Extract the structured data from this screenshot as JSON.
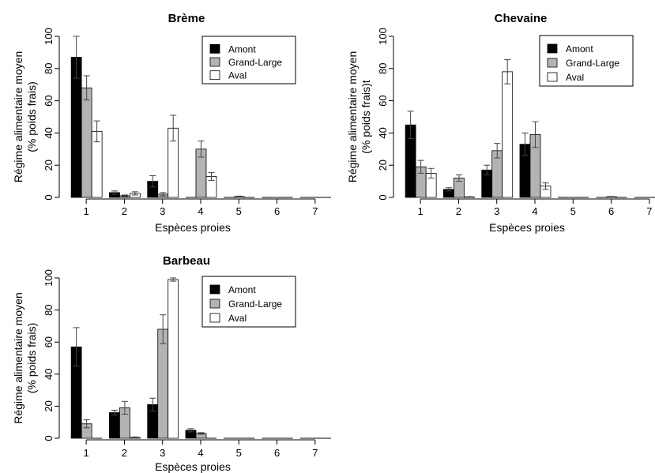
{
  "chart_data": [
    {
      "type": "bar",
      "title": "Brème",
      "xlabel": "Espèces proies",
      "ylabel": [
        "Régime alimentaire moyen",
        "(% poids frais)"
      ],
      "categories": [
        "1",
        "2",
        "3",
        "4",
        "5",
        "6",
        "7"
      ],
      "ylim": [
        0,
        100
      ],
      "yticks": [
        "0",
        "20",
        "40",
        "60",
        "80",
        "100"
      ],
      "legend_position": "top-right",
      "series": [
        {
          "name": "Amont",
          "color": "#000000",
          "values": [
            87,
            3,
            10,
            0,
            0,
            0,
            0
          ],
          "errors": [
            13,
            1,
            3.5,
            0,
            0,
            0,
            0
          ]
        },
        {
          "name": "Grand-Large",
          "color": "#b3b3b3",
          "values": [
            68,
            1,
            2,
            30,
            0.5,
            0,
            0
          ],
          "errors": [
            7.5,
            0.5,
            1,
            5,
            0.3,
            0,
            0
          ]
        },
        {
          "name": "Aval",
          "color": "#ffffff",
          "values": [
            41,
            2.5,
            43,
            13,
            0,
            0,
            0
          ],
          "errors": [
            6.5,
            1,
            8,
            2.5,
            0,
            0,
            0
          ]
        }
      ]
    },
    {
      "type": "bar",
      "title": "Chevaine",
      "xlabel": "Espèces proies",
      "ylabel": [
        "Régime alimentaire moyen",
        "(% poids frais)t"
      ],
      "categories": [
        "1",
        "2",
        "3",
        "4",
        "5",
        "6",
        "7"
      ],
      "ylim": [
        0,
        100
      ],
      "yticks": [
        "0",
        "20",
        "40",
        "60",
        "80",
        "100"
      ],
      "legend_position": "top-right",
      "series": [
        {
          "name": "Amont",
          "color": "#000000",
          "values": [
            45,
            5,
            17,
            33,
            0,
            0,
            0
          ],
          "errors": [
            8.5,
            1,
            3,
            7,
            0,
            0,
            0
          ]
        },
        {
          "name": "Grand-Large",
          "color": "#b3b3b3",
          "values": [
            19,
            12,
            29,
            39,
            0,
            0.4,
            0
          ],
          "errors": [
            4,
            2,
            4.5,
            8,
            0,
            0.2,
            0
          ]
        },
        {
          "name": "Aval",
          "color": "#ffffff",
          "values": [
            15,
            0.3,
            78,
            7,
            0,
            0,
            0
          ],
          "errors": [
            3,
            0.2,
            7.5,
            2,
            0,
            0,
            0
          ]
        }
      ]
    },
    {
      "type": "bar",
      "title": "Barbeau",
      "xlabel": "Espèces proies",
      "ylabel": [
        "Régime alimentaire moyen",
        "(% poids frais)"
      ],
      "categories": [
        "1",
        "2",
        "3",
        "4",
        "5",
        "6",
        "7"
      ],
      "ylim": [
        0,
        100
      ],
      "yticks": [
        "0",
        "20",
        "40",
        "60",
        "80",
        "100"
      ],
      "legend_position": "top-right",
      "series": [
        {
          "name": "Amont",
          "color": "#000000",
          "values": [
            57,
            16,
            21,
            5,
            0,
            0,
            0
          ],
          "errors": [
            12,
            1.5,
            4,
            1,
            0,
            0,
            0
          ]
        },
        {
          "name": "Grand-Large",
          "color": "#b3b3b3",
          "values": [
            9,
            19,
            68,
            3,
            0,
            0,
            0
          ],
          "errors": [
            2.5,
            4,
            9,
            0.5,
            0,
            0,
            0
          ]
        },
        {
          "name": "Aval",
          "color": "#ffffff",
          "values": [
            0,
            0.5,
            99,
            0,
            0,
            0,
            0
          ],
          "errors": [
            0,
            0.3,
            1,
            0,
            0,
            0,
            0
          ]
        }
      ]
    }
  ]
}
